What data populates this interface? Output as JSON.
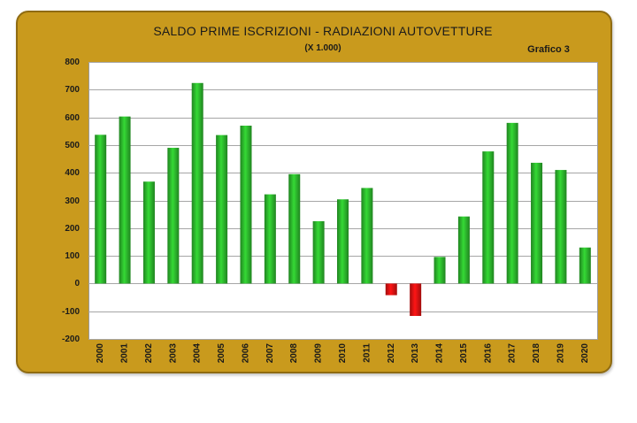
{
  "chart_data": {
    "type": "bar",
    "title": "SALDO PRIME ISCRIZIONI - RADIAZIONI AUTOVETTURE",
    "subtitle": "(X 1.000)",
    "annotation": "Grafico 3",
    "xlabel": "",
    "ylabel": "",
    "categories": [
      "2000",
      "2001",
      "2002",
      "2003",
      "2004",
      "2005",
      "2006",
      "2007",
      "2008",
      "2009",
      "2010",
      "2011",
      "2012",
      "2013",
      "2014",
      "2015",
      "2016",
      "2017",
      "2018",
      "2019",
      "2020"
    ],
    "values": [
      537,
      603,
      368,
      490,
      724,
      536,
      570,
      322,
      395,
      225,
      304,
      345,
      -42,
      -117,
      96,
      242,
      477,
      580,
      436,
      410,
      130
    ],
    "ylim": [
      -200,
      800
    ],
    "yticks": [
      800,
      700,
      600,
      500,
      400,
      300,
      200,
      100,
      0,
      -100,
      -200
    ],
    "grid": true,
    "colors": {
      "positive_bar": "#2DB82D",
      "negative_bar": "#E01212",
      "panel": "#C99A1D",
      "panel_border": "#8F6B12",
      "plot_background": "#FFFFFF",
      "gridline": "#A6A6A6"
    }
  }
}
